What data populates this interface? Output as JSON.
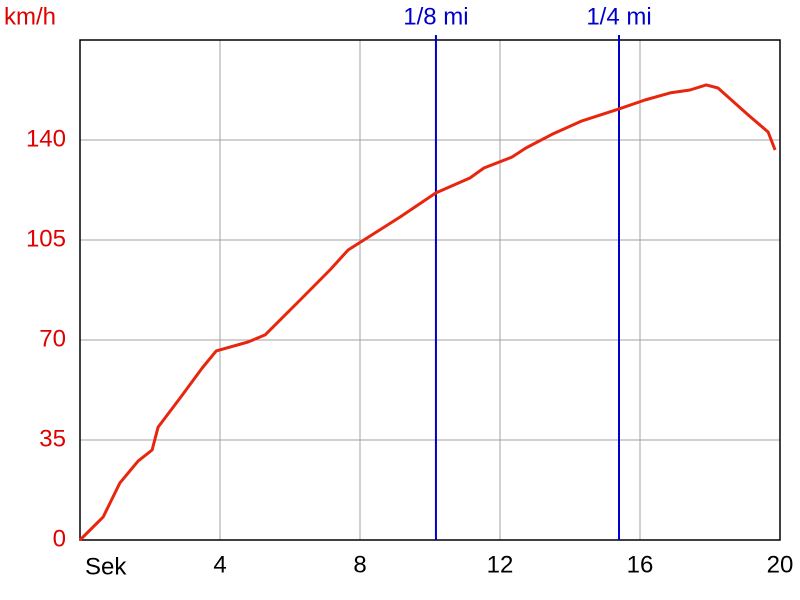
{
  "chart_data": {
    "type": "line",
    "y_label": "km/h",
    "x_label": "Sek",
    "x": [
      0,
      0.66,
      1.14,
      1.66,
      2.06,
      2.23,
      2.86,
      3.49,
      3.89,
      4.8,
      5.29,
      6.29,
      7.14,
      7.66,
      8.34,
      9.14,
      10.17,
      11.14,
      11.54,
      12.34,
      12.74,
      13.49,
      14.34,
      15.4,
      16.14,
      16.86,
      17.43,
      17.89,
      18.23,
      19.09,
      19.66,
      19.86
    ],
    "series": [
      {
        "color": "#e8260f",
        "values": [
          0,
          8,
          20,
          27.6,
          31.5,
          39.5,
          49.7,
          60.2,
          66.2,
          69.3,
          71.8,
          84,
          94.5,
          101.5,
          106.8,
          113,
          121.5,
          126.7,
          130.2,
          134,
          137.2,
          142,
          146.7,
          150.9,
          154,
          156.5,
          157.5,
          159.3,
          158.2,
          148.8,
          142.8,
          136.5
        ]
      }
    ],
    "xlim": [
      0,
      20
    ],
    "xticks": [
      4,
      8,
      12,
      16,
      20
    ],
    "ylim": [
      0,
      175
    ],
    "yticks": [
      0,
      35,
      70,
      105,
      140
    ],
    "grid": true,
    "axis_label_color": "#e00000",
    "marker_color": "#0000cc",
    "markers": [
      {
        "label": "1/8 mi",
        "x": 10.17
      },
      {
        "label": "1/4 mi",
        "x": 15.4
      }
    ]
  }
}
